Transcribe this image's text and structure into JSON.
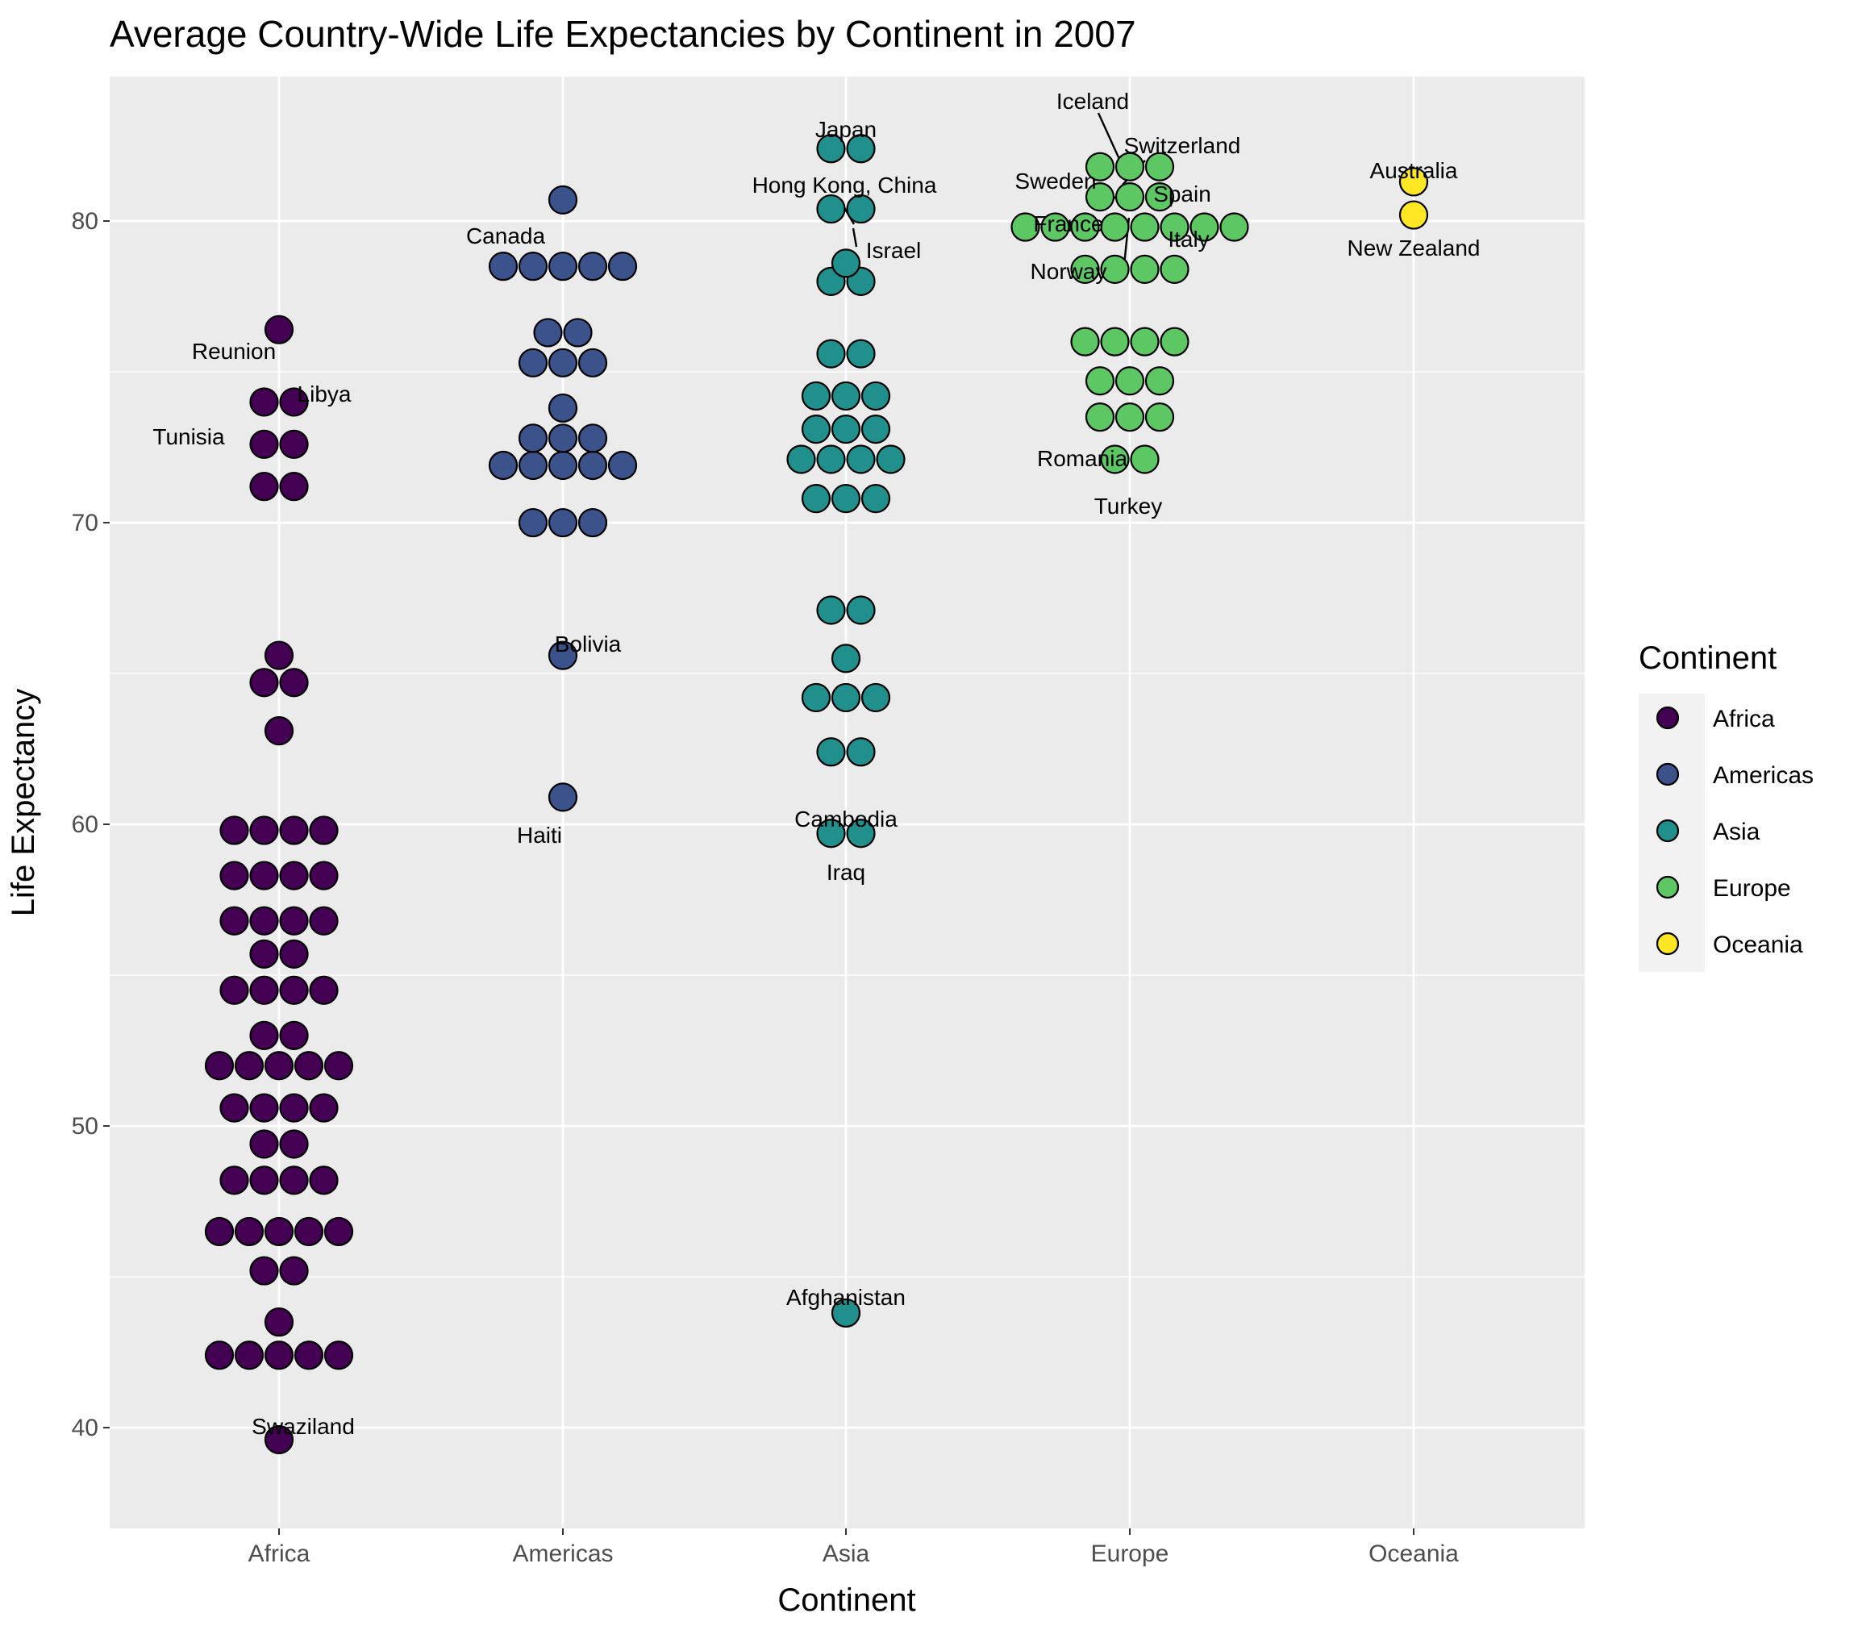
{
  "chart_data": {
    "type": "scatter",
    "subtype": "beeswarm",
    "title": "Average Country-Wide Life Expectancies by Continent in 2007",
    "xlabel": "Continent",
    "ylabel": "Life Expectancy",
    "categories": [
      "Africa",
      "Americas",
      "Asia",
      "Europe",
      "Oceania"
    ],
    "ylim": [
      37,
      85
    ],
    "yticks": [
      40,
      50,
      60,
      70,
      80
    ],
    "grid": true,
    "legend": {
      "title": "Continent",
      "placement": "right",
      "entries": [
        "Africa",
        "Americas",
        "Asia",
        "Europe",
        "Oceania"
      ]
    },
    "colors": {
      "Africa": "#440154",
      "Americas": "#3b528b",
      "Asia": "#21908c",
      "Europe": "#5dc863",
      "Oceania": "#fde725",
      "panel": "#ebebeb",
      "grid": "#ffffff",
      "outline": "#000000"
    },
    "series": [
      {
        "name": "Africa",
        "values": [
          39.6,
          42.4,
          42.4,
          42.4,
          42.4,
          42.4,
          43.5,
          45.2,
          45.2,
          46.5,
          46.5,
          46.5,
          46.5,
          46.5,
          48.2,
          48.2,
          48.2,
          48.2,
          49.4,
          49.4,
          50.6,
          50.6,
          50.6,
          50.6,
          52.0,
          52.0,
          52.0,
          52.0,
          52.0,
          53.0,
          53.0,
          54.5,
          54.5,
          54.5,
          54.5,
          55.7,
          55.7,
          56.8,
          56.8,
          56.8,
          56.8,
          58.3,
          58.3,
          58.3,
          58.3,
          59.8,
          59.8,
          59.8,
          59.8,
          63.1,
          64.7,
          64.7,
          65.6,
          71.2,
          71.2,
          72.6,
          72.6,
          74.0,
          74.0,
          76.4
        ]
      },
      {
        "name": "Americas",
        "values": [
          60.9,
          65.6,
          70.0,
          70.0,
          70.0,
          71.9,
          71.9,
          71.9,
          71.9,
          71.9,
          72.8,
          72.8,
          72.8,
          73.8,
          75.3,
          75.3,
          75.3,
          76.3,
          76.3,
          78.5,
          78.5,
          78.5,
          78.5,
          78.5,
          80.7
        ]
      },
      {
        "name": "Asia",
        "values": [
          43.8,
          59.7,
          59.7,
          62.4,
          62.4,
          64.2,
          64.2,
          64.2,
          65.5,
          67.1,
          67.1,
          70.8,
          70.8,
          70.8,
          72.1,
          72.1,
          72.1,
          72.1,
          73.1,
          73.1,
          73.1,
          74.2,
          74.2,
          74.2,
          75.6,
          75.6,
          78.0,
          78.0,
          78.6,
          80.4,
          80.4,
          82.4,
          82.4
        ]
      },
      {
        "name": "Europe",
        "values": [
          72.1,
          72.1,
          73.5,
          73.5,
          73.5,
          74.7,
          74.7,
          74.7,
          76.0,
          76.0,
          76.0,
          76.0,
          78.4,
          78.4,
          78.4,
          78.4,
          79.8,
          79.8,
          79.8,
          79.8,
          79.8,
          79.8,
          79.8,
          79.8,
          80.8,
          80.8,
          80.8,
          81.8,
          81.8,
          81.8
        ]
      },
      {
        "name": "Oceania",
        "values": [
          80.2,
          81.3
        ]
      }
    ],
    "annotations": [
      {
        "text": "Reunion",
        "category": "Africa",
        "y": 76.4
      },
      {
        "text": "Libya",
        "category": "Africa",
        "y": 74.0
      },
      {
        "text": "Tunisia",
        "category": "Africa",
        "y": 73.4
      },
      {
        "text": "Swaziland",
        "category": "Africa",
        "y": 39.6
      },
      {
        "text": "Canada",
        "category": "Americas",
        "y": 80.7
      },
      {
        "text": "Bolivia",
        "category": "Americas",
        "y": 65.6
      },
      {
        "text": "Haiti",
        "category": "Americas",
        "y": 60.9
      },
      {
        "text": "Japan",
        "category": "Asia",
        "y": 82.6
      },
      {
        "text": "Hong Kong, China",
        "category": "Asia",
        "y": 82.2
      },
      {
        "text": "Israel",
        "category": "Asia",
        "y": 80.4
      },
      {
        "text": "Cambodia",
        "category": "Asia",
        "y": 59.7
      },
      {
        "text": "Iraq",
        "category": "Asia",
        "y": 59.7
      },
      {
        "text": "Afghanistan",
        "category": "Asia",
        "y": 43.8
      },
      {
        "text": "Iceland",
        "category": "Europe",
        "y": 81.8
      },
      {
        "text": "Switzerland",
        "category": "Europe",
        "y": 81.7
      },
      {
        "text": "Sweden",
        "category": "Europe",
        "y": 80.9
      },
      {
        "text": "Spain",
        "category": "Europe",
        "y": 80.9
      },
      {
        "text": "France",
        "category": "Europe",
        "y": 80.7
      },
      {
        "text": "Italy",
        "category": "Europe",
        "y": 80.5
      },
      {
        "text": "Norway",
        "category": "Europe",
        "y": 80.2
      },
      {
        "text": "Romania",
        "category": "Europe",
        "y": 72.5
      },
      {
        "text": "Turkey",
        "category": "Europe",
        "y": 71.8
      },
      {
        "text": "Australia",
        "category": "Oceania",
        "y": 81.2
      },
      {
        "text": "New Zealand",
        "category": "Oceania",
        "y": 80.2
      }
    ]
  }
}
